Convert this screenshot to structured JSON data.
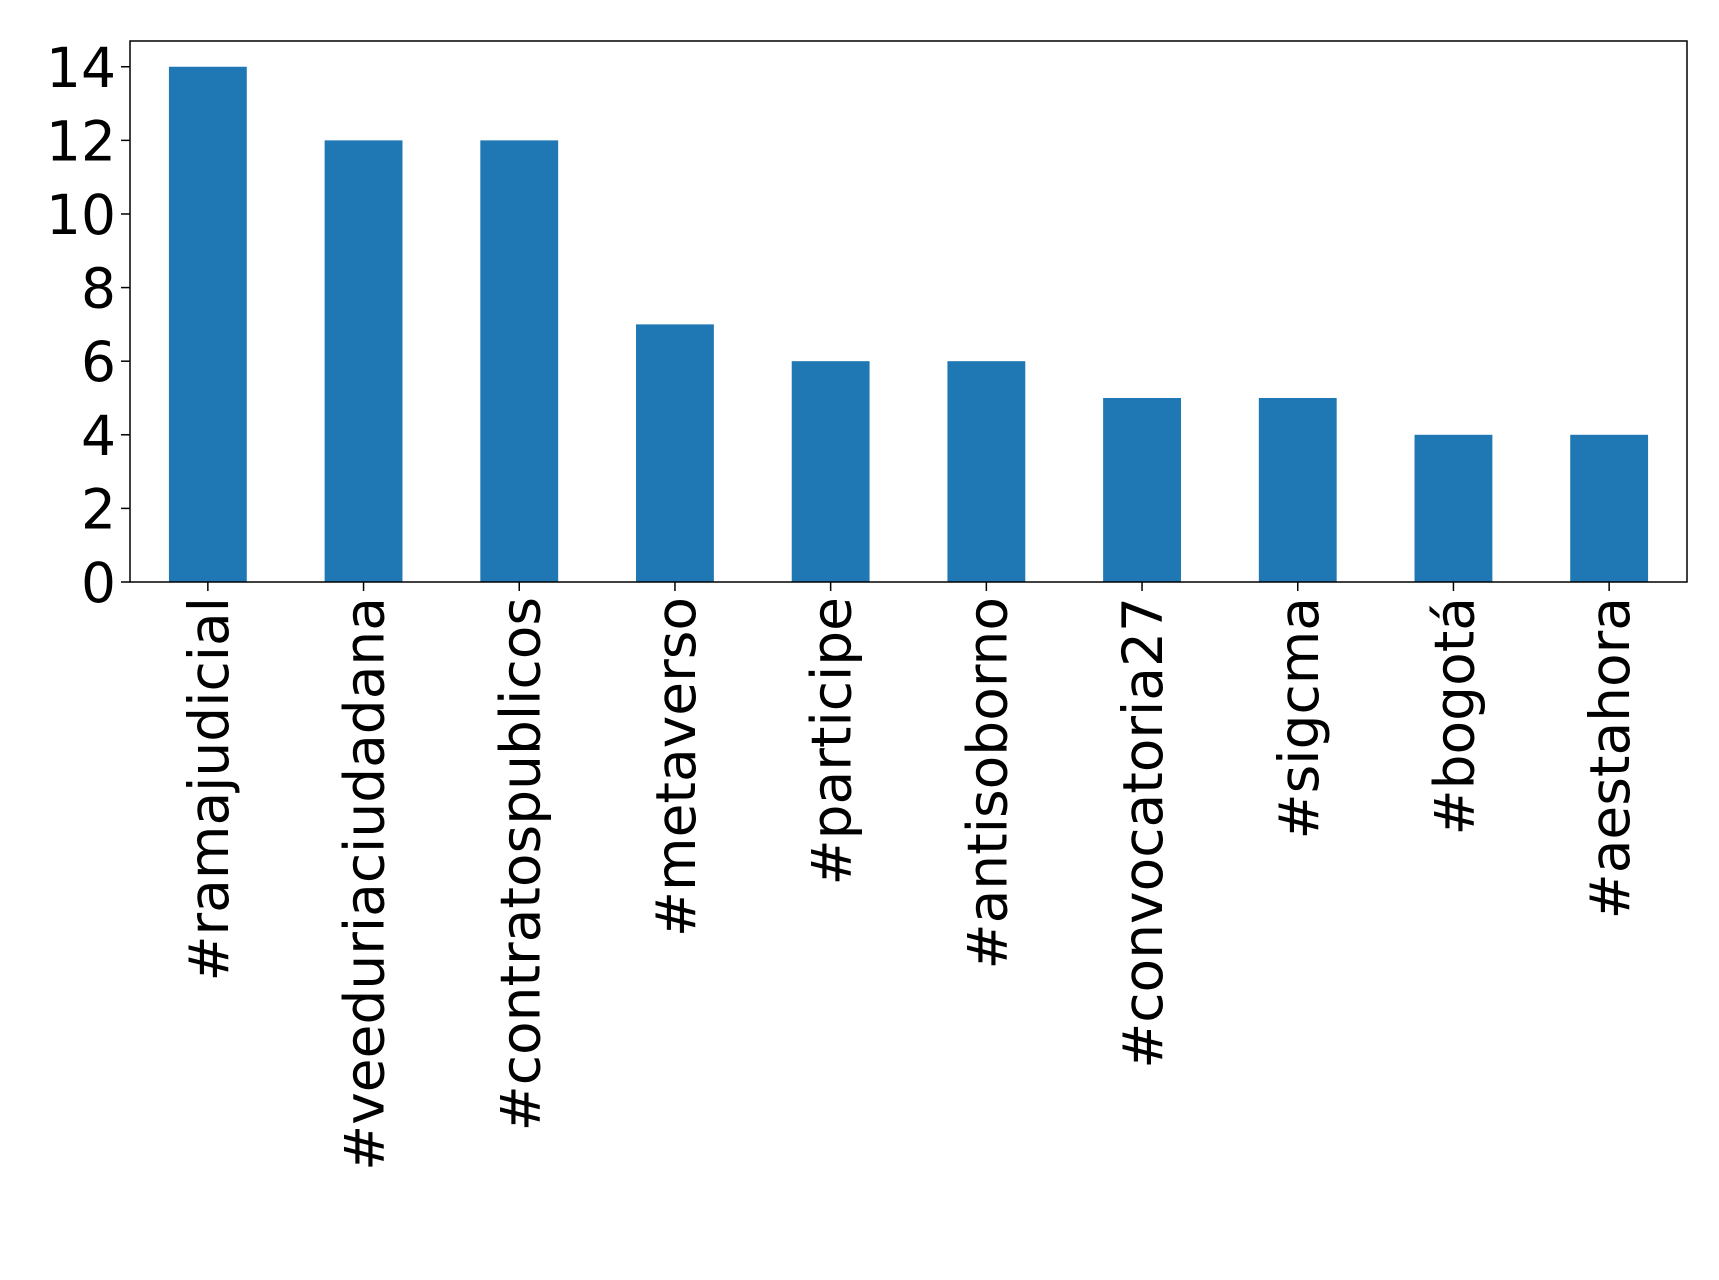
{
  "chart_data": {
    "type": "bar",
    "categories": [
      "#ramajudicial",
      "#veeduriaciudadana",
      "#contratospublicos",
      "#metaverso",
      "#participe",
      "#antisoborno",
      "#convocatoria27",
      "#sigcma",
      "#bogotá",
      "#aestahora"
    ],
    "values": [
      14,
      12,
      12,
      7,
      6,
      6,
      5,
      5,
      4,
      4
    ],
    "color": "#1f77b4",
    "ylim": [
      0,
      14.7
    ],
    "yticks": [
      0,
      2,
      4,
      6,
      8,
      10,
      12,
      14
    ],
    "grid": false
  }
}
